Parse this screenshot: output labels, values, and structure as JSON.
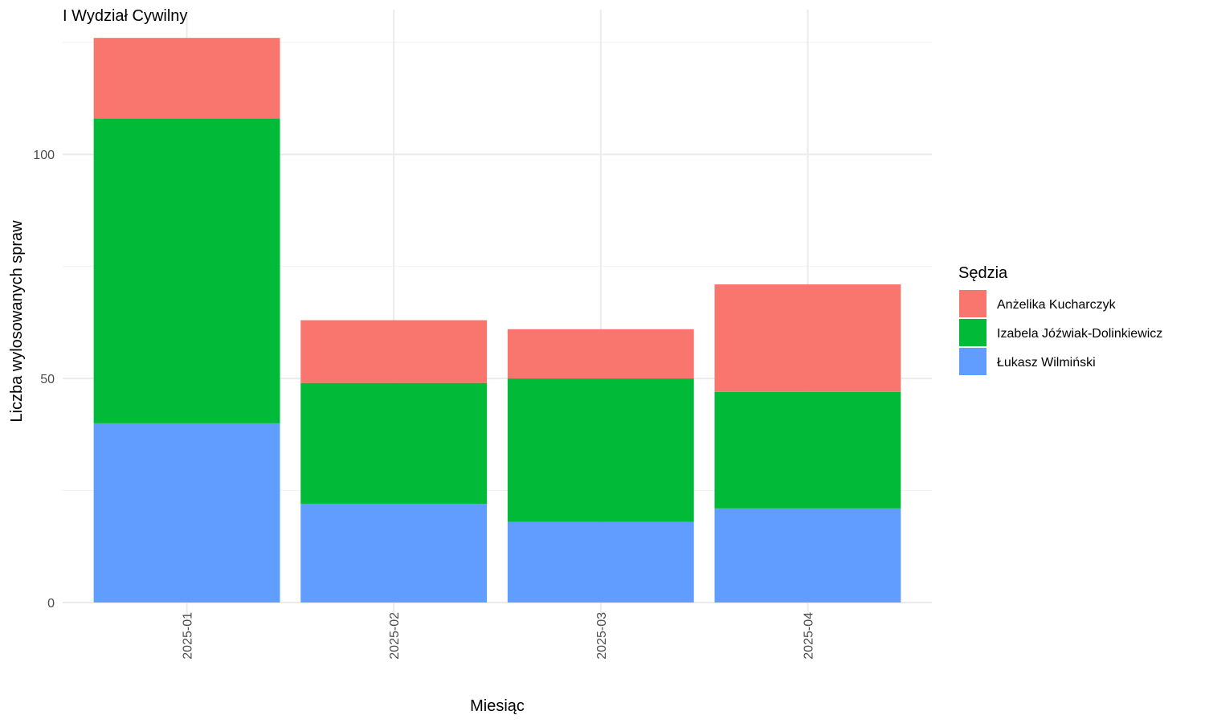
{
  "chart_data": {
    "type": "bar",
    "stacked": true,
    "title": "I Wydział Cywilny",
    "xlabel": "Miesiąc",
    "ylabel": "Liczba wylosowanych spraw",
    "categories": [
      "2025-01",
      "2025-02",
      "2025-03",
      "2025-04"
    ],
    "series": [
      {
        "name": "Łukasz Wilmiński",
        "color": "#619CFF",
        "values": [
          40,
          22,
          18,
          21
        ]
      },
      {
        "name": "Izabela Jóźwiak-Dolinkiewicz",
        "color": "#00BA38",
        "values": [
          68,
          27,
          32,
          26
        ]
      },
      {
        "name": "Anżelika Kucharczyk",
        "color": "#F8766D",
        "values": [
          18,
          14,
          11,
          24
        ]
      }
    ],
    "legend_title": "Sędzia",
    "legend_order": [
      "Anżelika Kucharczyk",
      "Izabela Jóźwiak-Dolinkiewicz",
      "Łukasz Wilmiński"
    ],
    "legend_position": "right",
    "ylim": [
      0,
      126
    ],
    "yticks": [
      0,
      50,
      100
    ],
    "grid": true
  }
}
